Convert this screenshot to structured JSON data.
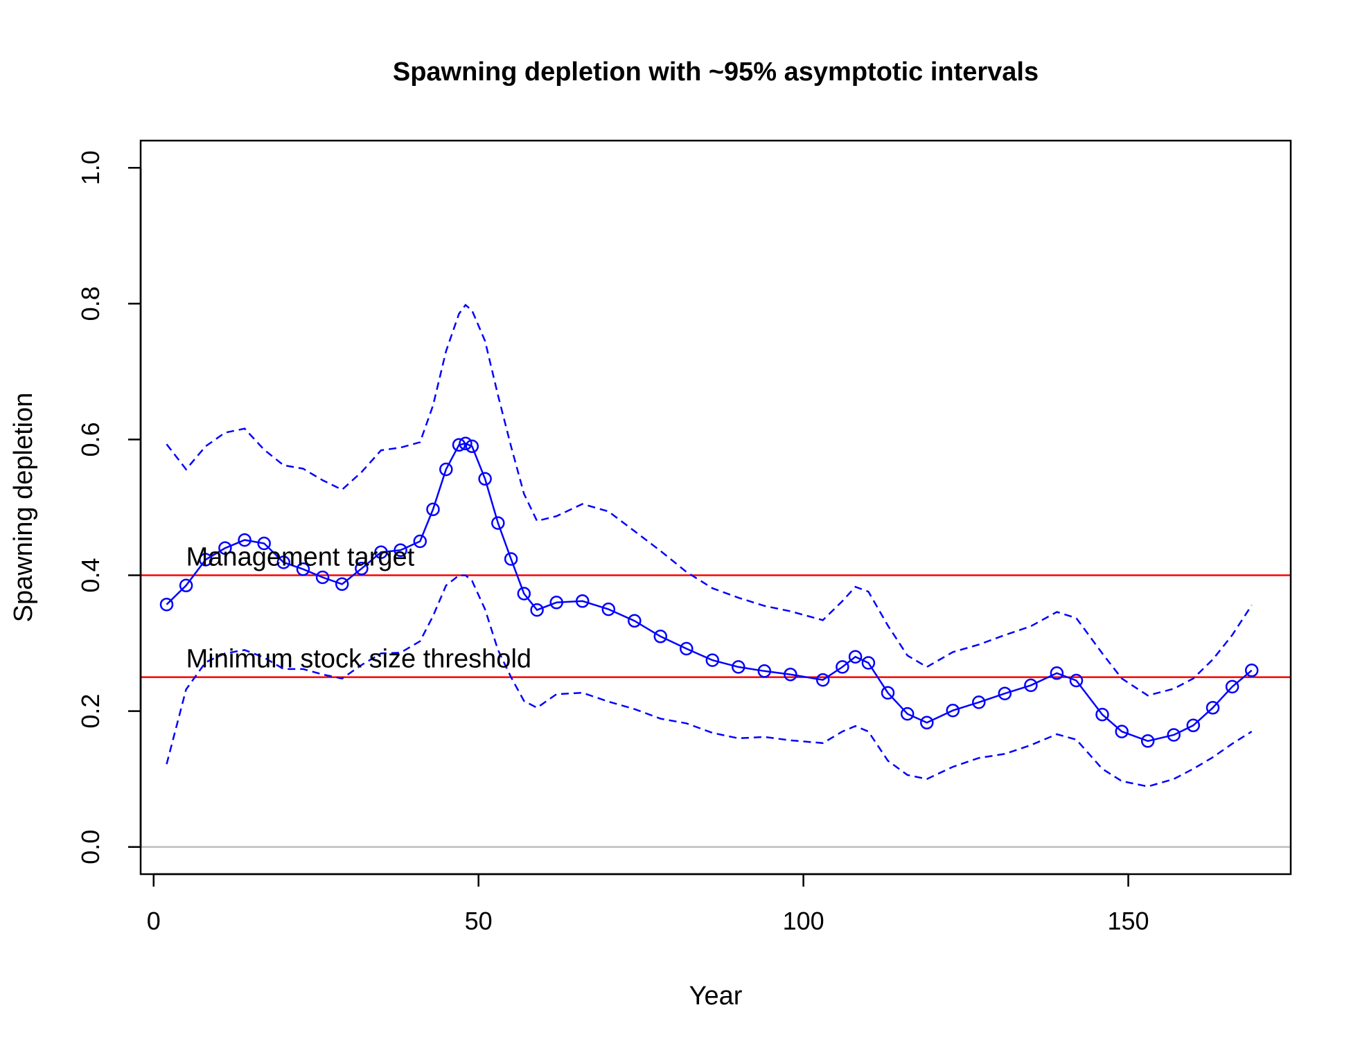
{
  "chart_data": {
    "type": "line",
    "title": "Spawning depletion with ~95% asymptotic intervals",
    "xlabel": "Year",
    "ylabel": "Spawning depletion",
    "xlim": [
      -2,
      175
    ],
    "ylim": [
      -0.04,
      1.04
    ],
    "xticks": [
      0,
      50,
      100,
      150
    ],
    "yticks": [
      0.0,
      0.2,
      0.4,
      0.6,
      0.8,
      1.0
    ],
    "ytick_labels": [
      "0.0",
      "0.2",
      "0.4",
      "0.6",
      "0.8",
      "1.0"
    ],
    "colors": {
      "series": "#0000ff",
      "reference": "#ff0000",
      "zero_line": "#bebebe",
      "axes": "#000000"
    },
    "reference_lines": [
      {
        "y": 0.4,
        "label": "Management target",
        "label_x": 5
      },
      {
        "y": 0.25,
        "label": "Minimum stock size threshold",
        "label_x": 5
      }
    ],
    "series": [
      {
        "name": "Spawning depletion",
        "style": "line-with-open-circles",
        "x": [
          2,
          5,
          8,
          11,
          14,
          17,
          20,
          23,
          26,
          29,
          32,
          35,
          38,
          41,
          43,
          45,
          47,
          48,
          49,
          51,
          53,
          55,
          57,
          59,
          62,
          66,
          70,
          74,
          78,
          82,
          86,
          90,
          94,
          98,
          103,
          106,
          108,
          110,
          113,
          116,
          119,
          123,
          127,
          131,
          135,
          139,
          142,
          146,
          149,
          153,
          157,
          160,
          163,
          166,
          169
        ],
        "y": [
          0.357,
          0.385,
          0.423,
          0.44,
          0.452,
          0.447,
          0.419,
          0.409,
          0.397,
          0.387,
          0.41,
          0.434,
          0.437,
          0.45,
          0.497,
          0.556,
          0.592,
          0.594,
          0.59,
          0.542,
          0.477,
          0.424,
          0.373,
          0.349,
          0.36,
          0.362,
          0.35,
          0.333,
          0.31,
          0.292,
          0.275,
          0.265,
          0.259,
          0.254,
          0.246,
          0.265,
          0.28,
          0.271,
          0.227,
          0.196,
          0.183,
          0.201,
          0.213,
          0.226,
          0.238,
          0.256,
          0.245,
          0.195,
          0.17,
          0.156,
          0.165,
          0.179,
          0.205,
          0.236,
          0.26
        ]
      },
      {
        "name": "Upper interval",
        "style": "dashed",
        "x": [
          2,
          5,
          8,
          11,
          14,
          17,
          20,
          23,
          26,
          29,
          32,
          35,
          38,
          41,
          43,
          45,
          47,
          48,
          49,
          51,
          53,
          55,
          57,
          59,
          62,
          66,
          70,
          74,
          78,
          82,
          86,
          90,
          94,
          98,
          103,
          106,
          108,
          110,
          113,
          116,
          119,
          123,
          127,
          131,
          135,
          139,
          142,
          146,
          149,
          153,
          157,
          160,
          163,
          166,
          169
        ],
        "y": [
          0.593,
          0.556,
          0.59,
          0.61,
          0.616,
          0.585,
          0.562,
          0.557,
          0.54,
          0.526,
          0.552,
          0.584,
          0.588,
          0.596,
          0.65,
          0.73,
          0.785,
          0.798,
          0.79,
          0.745,
          0.665,
          0.59,
          0.52,
          0.48,
          0.487,
          0.505,
          0.494,
          0.465,
          0.436,
          0.405,
          0.381,
          0.367,
          0.355,
          0.347,
          0.334,
          0.362,
          0.383,
          0.376,
          0.326,
          0.282,
          0.265,
          0.287,
          0.298,
          0.312,
          0.325,
          0.346,
          0.337,
          0.285,
          0.248,
          0.223,
          0.233,
          0.248,
          0.276,
          0.312,
          0.356
        ]
      },
      {
        "name": "Lower interval",
        "style": "dashed",
        "x": [
          2,
          5,
          8,
          11,
          14,
          17,
          20,
          23,
          26,
          29,
          32,
          35,
          38,
          41,
          43,
          45,
          47,
          48,
          49,
          51,
          53,
          55,
          57,
          59,
          62,
          66,
          70,
          74,
          78,
          82,
          86,
          90,
          94,
          98,
          103,
          106,
          108,
          110,
          113,
          116,
          119,
          123,
          127,
          131,
          135,
          139,
          142,
          146,
          149,
          153,
          157,
          160,
          163,
          166,
          169
        ],
        "y": [
          0.122,
          0.232,
          0.272,
          0.285,
          0.29,
          0.279,
          0.262,
          0.262,
          0.254,
          0.248,
          0.268,
          0.285,
          0.286,
          0.303,
          0.34,
          0.385,
          0.4,
          0.4,
          0.392,
          0.35,
          0.29,
          0.25,
          0.215,
          0.205,
          0.225,
          0.227,
          0.214,
          0.203,
          0.189,
          0.182,
          0.168,
          0.16,
          0.162,
          0.157,
          0.153,
          0.17,
          0.178,
          0.17,
          0.127,
          0.106,
          0.1,
          0.118,
          0.131,
          0.137,
          0.15,
          0.166,
          0.158,
          0.115,
          0.097,
          0.089,
          0.1,
          0.115,
          0.132,
          0.152,
          0.17
        ]
      }
    ]
  }
}
